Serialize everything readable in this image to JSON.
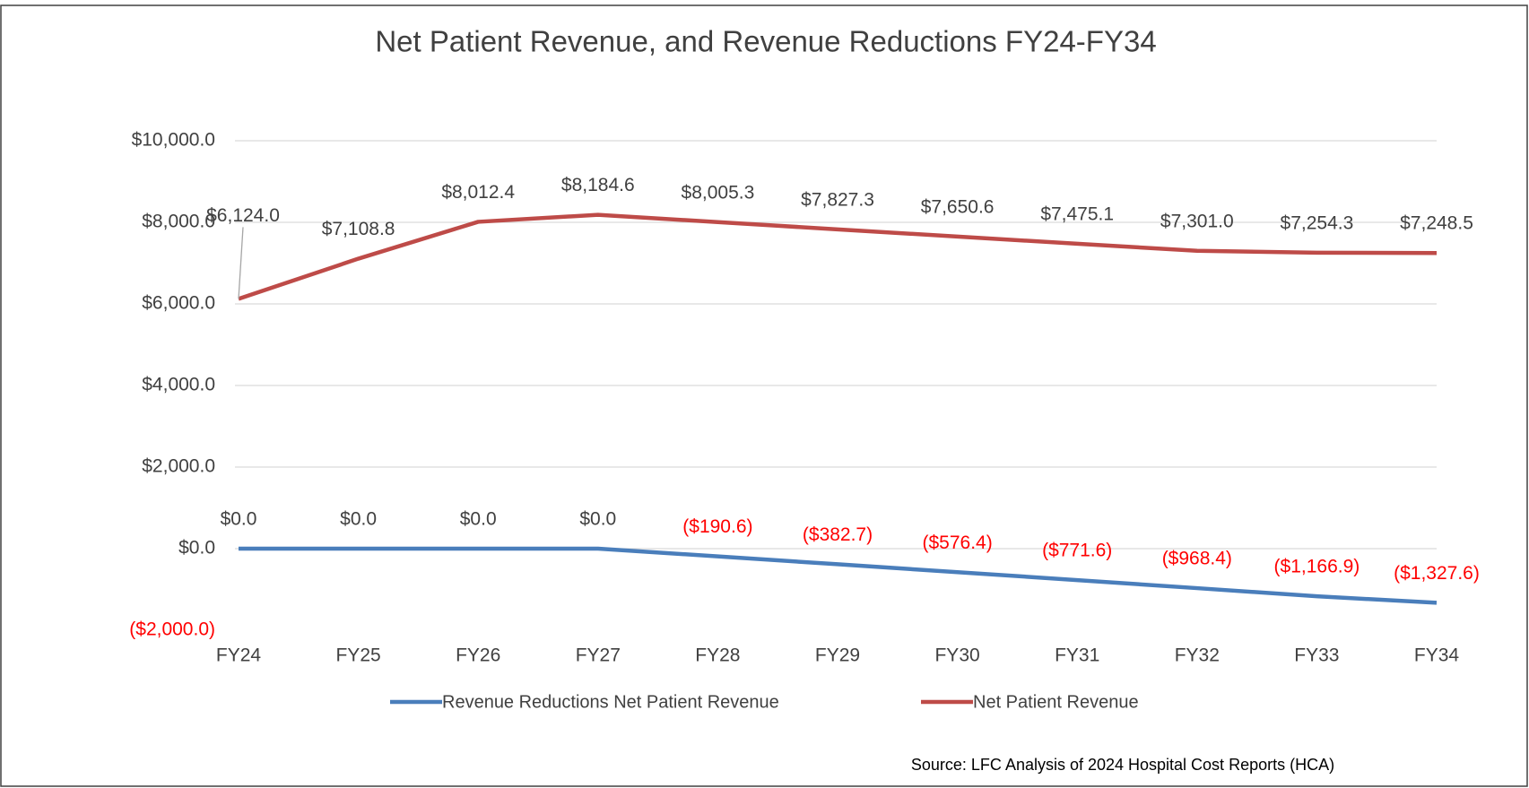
{
  "chart_data": {
    "type": "line",
    "title": "Net Patient Revenue, and Revenue Reductions FY24-FY34",
    "categories": [
      "FY24",
      "FY25",
      "FY26",
      "FY27",
      "FY28",
      "FY29",
      "FY30",
      "FY31",
      "FY32",
      "FY33",
      "FY34"
    ],
    "series": [
      {
        "name": "Revenue Reductions Net Patient Revenue",
        "color": "#4a7ebb",
        "values": [
          0.0,
          0.0,
          0.0,
          0.0,
          -190.6,
          -382.7,
          -576.4,
          -771.6,
          -968.4,
          -1166.9,
          -1327.6
        ],
        "value_labels": [
          "$0.0",
          "$0.0",
          "$0.0",
          "$0.0",
          "($190.6)",
          "($382.7)",
          "($576.4)",
          "($771.6)",
          "($968.4)",
          "($1,166.9)",
          "($1,327.6)"
        ]
      },
      {
        "name": "Net Patient Revenue",
        "color": "#be4b48",
        "values": [
          6124.0,
          7108.8,
          8012.4,
          8184.6,
          8005.3,
          7827.3,
          7650.6,
          7475.1,
          7301.0,
          7254.3,
          7248.5
        ],
        "value_labels": [
          "$6,124.0",
          "$7,108.8",
          "$8,012.4",
          "$8,184.6",
          "$8,005.3",
          "$7,827.3",
          "$7,650.6",
          "$7,475.1",
          "$7,301.0",
          "$7,254.3",
          "$7,248.5"
        ]
      }
    ],
    "ylim": [
      -2000,
      10000
    ],
    "yticks": [
      {
        "value": -2000,
        "label": "($2,000.0)"
      },
      {
        "value": 0,
        "label": "$0.0"
      },
      {
        "value": 2000,
        "label": "$2,000.0"
      },
      {
        "value": 4000,
        "label": "$4,000.0"
      },
      {
        "value": 6000,
        "label": "$6,000.0"
      },
      {
        "value": 8000,
        "label": "$8,000.0"
      },
      {
        "value": 10000,
        "label": "$10,000.0"
      }
    ],
    "grid": true,
    "negative_color": "#ff0000",
    "legend": "bottom",
    "source": "Source: LFC Analysis of 2024 Hospital Cost Reports (HCA)"
  }
}
